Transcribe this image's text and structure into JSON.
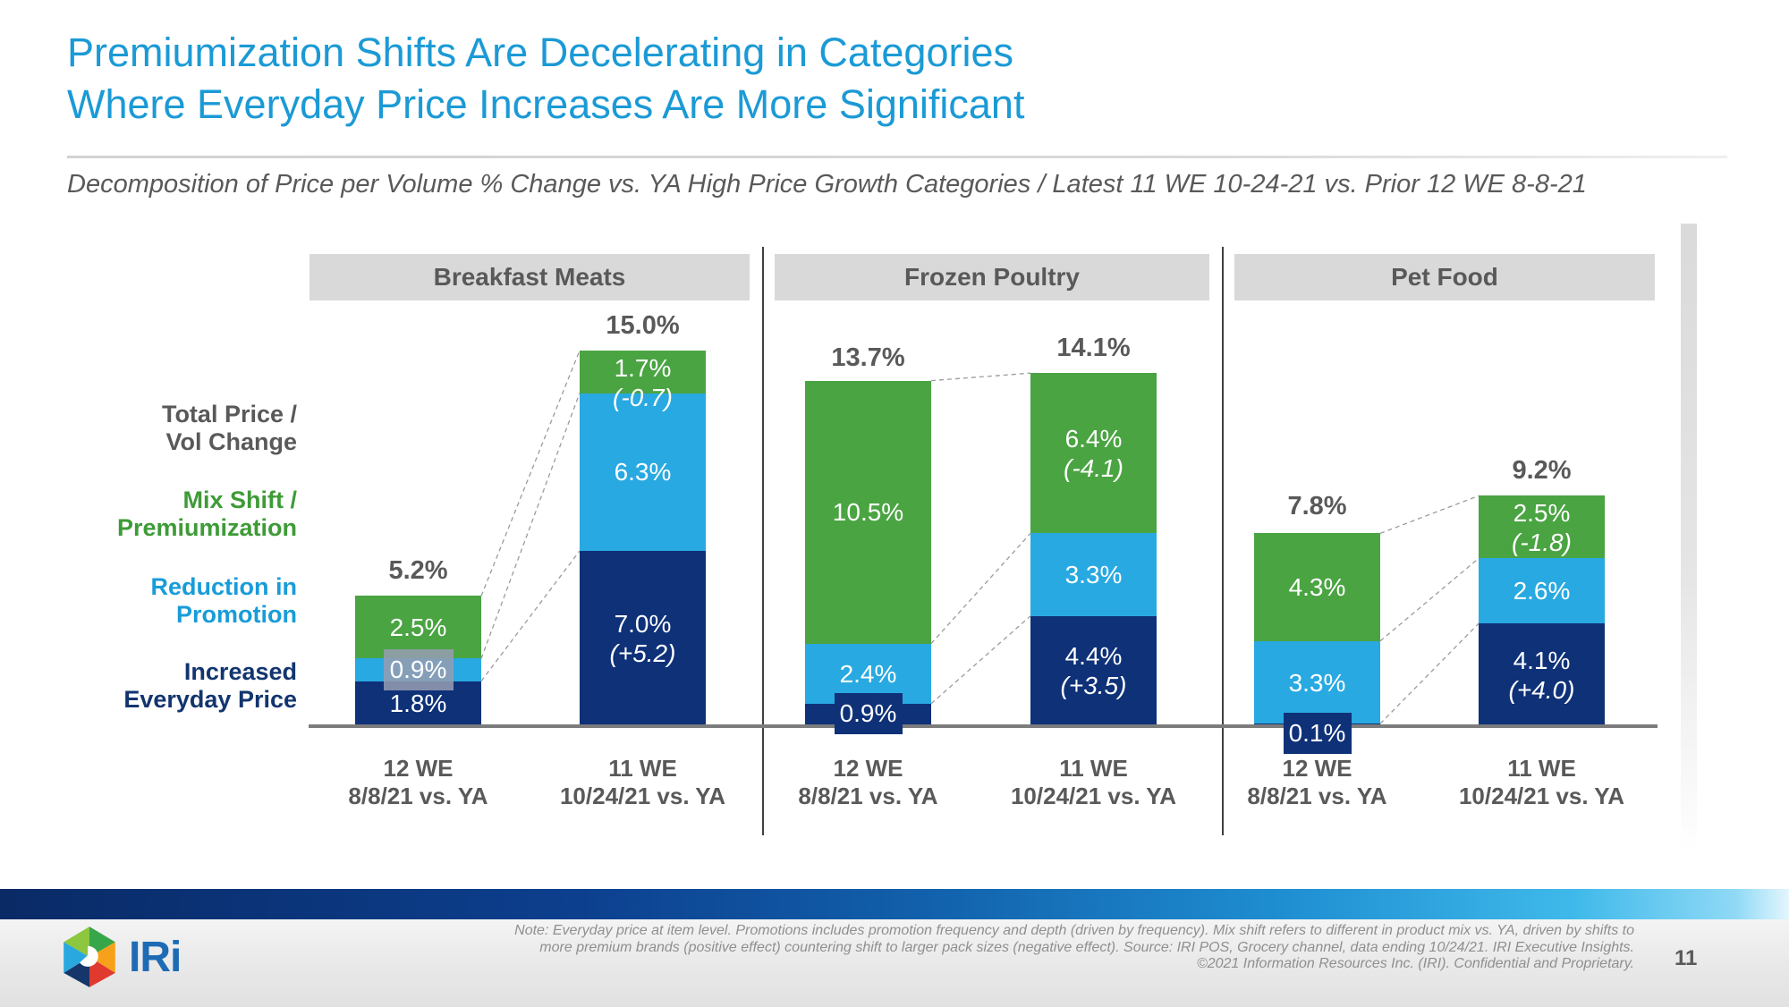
{
  "title": {
    "line1": "Premiumization Shifts Are Decelerating in Categories",
    "line2": "Where Everyday Price Increases Are More Significant"
  },
  "subtitle": "Decomposition of Price per Volume % Change vs. YA High Price Growth Categories / Latest 11 WE 10-24-21 vs. Prior 12 WE 8-8-21",
  "axis_legend": [
    {
      "line1": "Total Price /",
      "line2": "Vol Change",
      "color": "#595959"
    },
    {
      "line1": "Mix Shift /",
      "line2": "Premiumization",
      "color": "#3E9B37"
    },
    {
      "line1": "Reduction in",
      "line2": "Promotion",
      "color": "#189CD8"
    },
    {
      "line1": "Increased",
      "line2": "Everyday Price",
      "color": "#12356F"
    }
  ],
  "chart_data": {
    "type": "bar",
    "subtype": "stacked-decomposition-waterfall",
    "unit": "percent",
    "stack_order_bottom_to_top": [
      "Increased Everyday Price",
      "Reduction in Promotion",
      "Mix Shift / Premiumization"
    ],
    "series_colors": {
      "Increased Everyday Price": "#0E3178",
      "Reduction in Promotion": "#29A9E1",
      "Mix Shift / Premiumization": "#4AA442"
    },
    "groups": [
      {
        "category": "Breakfast Meats",
        "bars": [
          {
            "x_label": [
              "12 WE",
              "8/8/21 vs. YA"
            ],
            "total": 5.2,
            "total_label": "5.2%",
            "segments": [
              {
                "series": "Increased Everyday Price",
                "value": 1.8,
                "label": "1.8%"
              },
              {
                "series": "Reduction in Promotion",
                "value": 0.9,
                "label": "0.9%",
                "label_style": "highlight"
              },
              {
                "series": "Mix Shift / Premiumization",
                "value": 2.5,
                "label": "2.5%"
              }
            ]
          },
          {
            "x_label": [
              "11 WE",
              "10/24/21 vs. YA"
            ],
            "total": 15.0,
            "total_label": "15.0%",
            "segments": [
              {
                "series": "Increased Everyday Price",
                "value": 7.0,
                "label": "7.0%",
                "delta": "(+5.2)"
              },
              {
                "series": "Reduction in Promotion",
                "value": 6.3,
                "label": "6.3%"
              },
              {
                "series": "Mix Shift / Premiumization",
                "value": 1.7,
                "label": "1.7%",
                "delta": "(-0.7)"
              }
            ]
          }
        ]
      },
      {
        "category": "Frozen Poultry",
        "bars": [
          {
            "x_label": [
              "12 WE",
              "8/8/21 vs. YA"
            ],
            "total": 13.7,
            "total_label": "13.7%",
            "segments": [
              {
                "series": "Increased Everyday Price",
                "value": 0.9,
                "label": "0.9%",
                "label_style": "box-below"
              },
              {
                "series": "Reduction in Promotion",
                "value": 2.4,
                "label": "2.4%"
              },
              {
                "series": "Mix Shift / Premiumization",
                "value": 10.5,
                "label": "10.5%"
              }
            ]
          },
          {
            "x_label": [
              "11 WE",
              "10/24/21 vs. YA"
            ],
            "total": 14.1,
            "total_label": "14.1%",
            "segments": [
              {
                "series": "Increased Everyday Price",
                "value": 4.4,
                "label": "4.4%",
                "delta": "(+3.5)"
              },
              {
                "series": "Reduction in Promotion",
                "value": 3.3,
                "label": "3.3%"
              },
              {
                "series": "Mix Shift / Premiumization",
                "value": 6.4,
                "label": "6.4%",
                "delta": "(-4.1)"
              }
            ]
          }
        ]
      },
      {
        "category": "Pet Food",
        "bars": [
          {
            "x_label": [
              "12 WE",
              "8/8/21 vs. YA"
            ],
            "total": 7.8,
            "total_label": "7.8%",
            "segments": [
              {
                "series": "Increased Everyday Price",
                "value": 0.1,
                "label": "0.1%",
                "label_style": "box-below"
              },
              {
                "series": "Reduction in Promotion",
                "value": 3.3,
                "label": "3.3%"
              },
              {
                "series": "Mix Shift / Premiumization",
                "value": 4.3,
                "label": "4.3%"
              }
            ]
          },
          {
            "x_label": [
              "11 WE",
              "10/24/21 vs. YA"
            ],
            "total": 9.2,
            "total_label": "9.2%",
            "segments": [
              {
                "series": "Increased Everyday Price",
                "value": 4.1,
                "label": "4.1%",
                "delta": "(+4.0)"
              },
              {
                "series": "Reduction in Promotion",
                "value": 2.6,
                "label": "2.6%"
              },
              {
                "series": "Mix Shift / Premiumization",
                "value": 2.5,
                "label": "2.5%",
                "delta": "(-1.8)"
              }
            ]
          }
        ]
      }
    ]
  },
  "footer": {
    "note_lines": [
      "Note: Everyday price at item level. Promotions includes promotion frequency and depth (driven by frequency). Mix shift refers to different in product mix vs. YA, driven by shifts to",
      "more premium brands (positive effect) countering shift to larger pack sizes (negative effect). Source: IRI POS, Grocery channel, data ending 10/24/21. IRI Executive Insights.",
      "©2021 Information Resources Inc. (IRI). Confidential and Proprietary."
    ],
    "page_number": "11",
    "logo_text": "IRi"
  },
  "colors": {
    "title_blue": "#1B9AD5",
    "header_bg": "#D9D9D9",
    "gray_text": "#595959"
  }
}
